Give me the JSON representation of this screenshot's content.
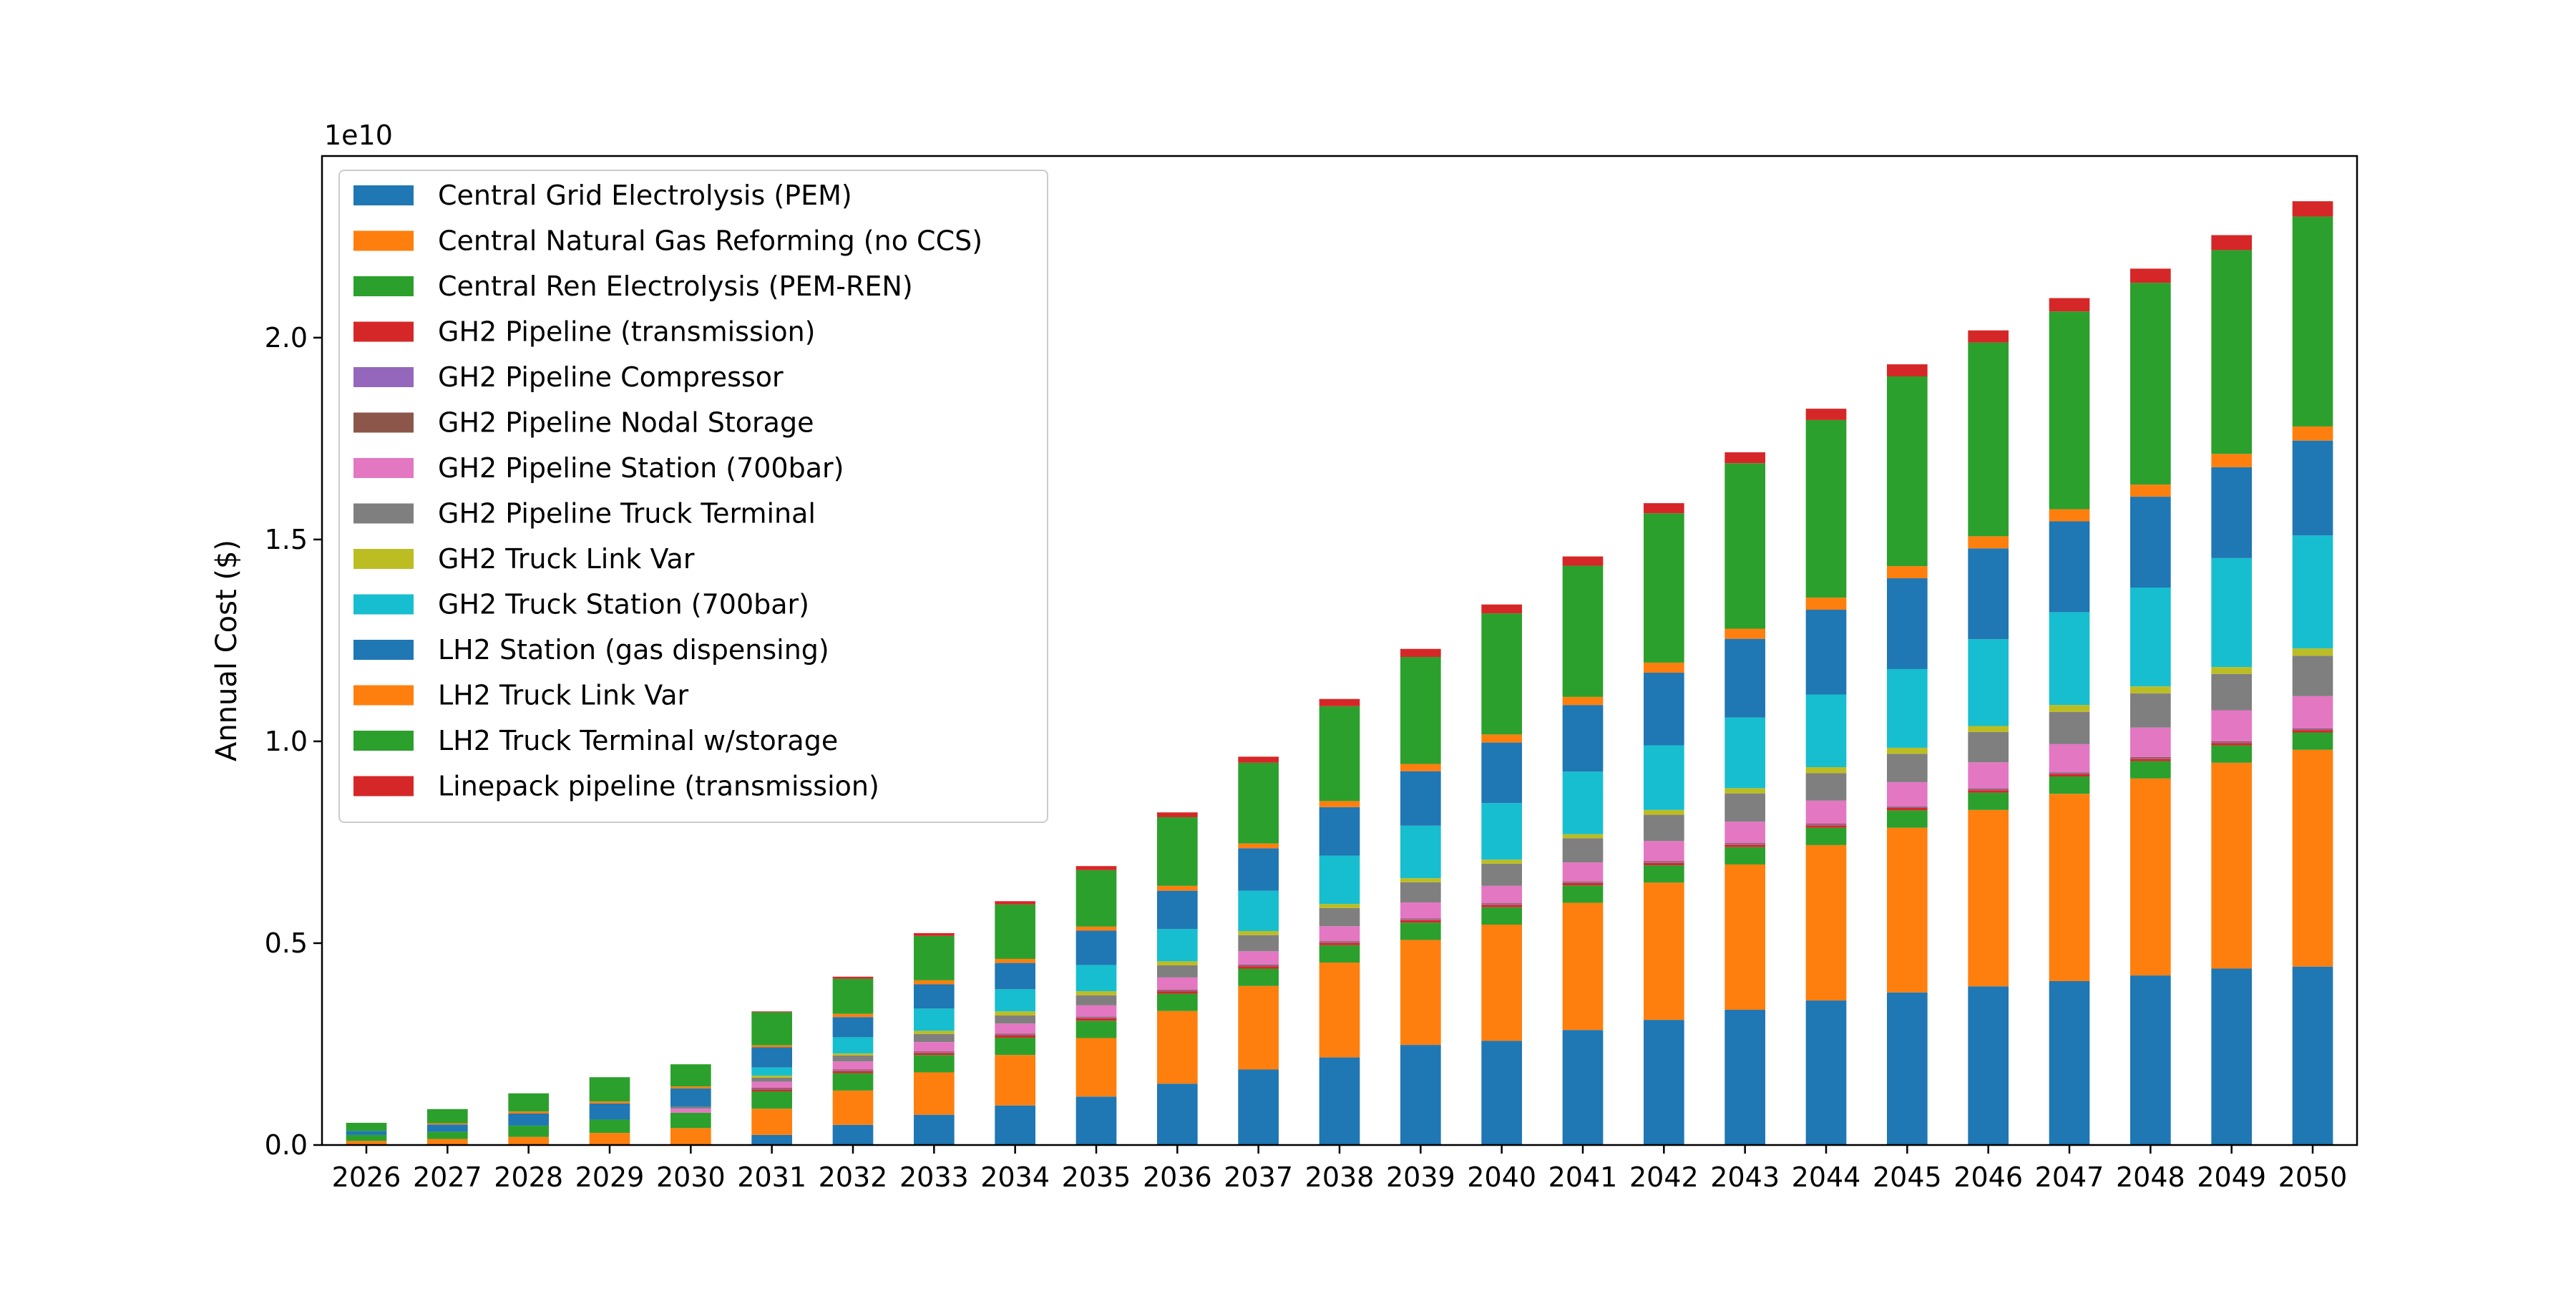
{
  "chart_data": {
    "type": "bar",
    "stacked": true,
    "title": "",
    "xlabel": "",
    "ylabel": "Annual Cost ($)",
    "y_offset_label": "1e10",
    "y_scale": 10000000000,
    "ylim": [
      0,
      24500000000
    ],
    "yticks": [
      0,
      5000000000,
      10000000000,
      15000000000,
      20000000000
    ],
    "ytick_labels": [
      "0.0",
      "0.5",
      "1.0",
      "1.5",
      "2.0"
    ],
    "grid": false,
    "legend_position": "upper-left",
    "categories": [
      "2026",
      "2027",
      "2028",
      "2029",
      "2030",
      "2031",
      "2032",
      "2033",
      "2034",
      "2035",
      "2036",
      "2037",
      "2038",
      "2039",
      "2040",
      "2041",
      "2042",
      "2043",
      "2044",
      "2045",
      "2046",
      "2047",
      "2048",
      "2049",
      "2050"
    ],
    "series": [
      {
        "name": "Central Grid Electrolysis (PEM)",
        "color": "#1f77b4",
        "values": [
          0,
          0,
          0,
          0,
          0,
          250000000,
          500000000,
          750000000,
          980000000,
          1200000000,
          1520000000,
          1870000000,
          2170000000,
          2480000000,
          2580000000,
          2850000000,
          3100000000,
          3350000000,
          3580000000,
          3780000000,
          3930000000,
          4060000000,
          4200000000,
          4370000000,
          4420000000
        ]
      },
      {
        "name": "Central Natural Gas Reforming (no CCS)",
        "color": "#ff7f0e",
        "values": [
          100000000,
          150000000,
          200000000,
          300000000,
          420000000,
          650000000,
          850000000,
          1050000000,
          1250000000,
          1450000000,
          1800000000,
          2070000000,
          2350000000,
          2600000000,
          2880000000,
          3150000000,
          3400000000,
          3600000000,
          3850000000,
          4080000000,
          4370000000,
          4640000000,
          4880000000,
          5100000000,
          5370000000
        ]
      },
      {
        "name": "Central Ren Electrolysis (PEM-REN)",
        "color": "#2ca02c",
        "values": [
          150000000,
          180000000,
          280000000,
          330000000,
          380000000,
          430000000,
          430000000,
          430000000,
          430000000,
          430000000,
          430000000,
          430000000,
          430000000,
          430000000,
          430000000,
          430000000,
          430000000,
          430000000,
          430000000,
          430000000,
          430000000,
          430000000,
          430000000,
          430000000,
          430000000
        ]
      },
      {
        "name": "GH2 Pipeline (transmission)",
        "color": "#d62728",
        "values": [
          0,
          0,
          0,
          0,
          0,
          50000000,
          50000000,
          50000000,
          60000000,
          60000000,
          60000000,
          60000000,
          60000000,
          60000000,
          60000000,
          60000000,
          60000000,
          60000000,
          60000000,
          60000000,
          60000000,
          60000000,
          60000000,
          60000000,
          60000000
        ]
      },
      {
        "name": "GH2 Pipeline Compressor",
        "color": "#9467bd",
        "values": [
          0,
          0,
          0,
          0,
          0,
          20000000,
          20000000,
          20000000,
          20000000,
          20000000,
          20000000,
          20000000,
          20000000,
          20000000,
          20000000,
          20000000,
          20000000,
          20000000,
          20000000,
          20000000,
          20000000,
          20000000,
          20000000,
          20000000,
          20000000
        ]
      },
      {
        "name": "GH2 Pipeline Nodal Storage",
        "color": "#8c564b",
        "values": [
          0,
          0,
          0,
          0,
          0,
          20000000,
          20000000,
          20000000,
          20000000,
          20000000,
          20000000,
          20000000,
          20000000,
          20000000,
          20000000,
          20000000,
          20000000,
          20000000,
          20000000,
          20000000,
          20000000,
          20000000,
          20000000,
          20000000,
          20000000
        ]
      },
      {
        "name": "GH2 Pipeline Station (700bar)",
        "color": "#e377c2",
        "values": [
          0,
          0,
          0,
          0,
          100000000,
          150000000,
          200000000,
          230000000,
          250000000,
          280000000,
          300000000,
          330000000,
          370000000,
          400000000,
          430000000,
          470000000,
          500000000,
          530000000,
          570000000,
          600000000,
          650000000,
          700000000,
          730000000,
          770000000,
          800000000
        ]
      },
      {
        "name": "GH2 Pipeline Truck Terminal",
        "color": "#7f7f7f",
        "values": [
          0,
          0,
          0,
          0,
          50000000,
          100000000,
          150000000,
          200000000,
          200000000,
          250000000,
          300000000,
          400000000,
          450000000,
          500000000,
          550000000,
          600000000,
          650000000,
          700000000,
          680000000,
          700000000,
          750000000,
          800000000,
          850000000,
          900000000,
          1000000000
        ]
      },
      {
        "name": "GH2 Truck Link Var",
        "color": "#bcbd22",
        "values": [
          0,
          0,
          0,
          0,
          0,
          50000000,
          50000000,
          80000000,
          100000000,
          100000000,
          100000000,
          100000000,
          100000000,
          100000000,
          100000000,
          100000000,
          120000000,
          130000000,
          150000000,
          150000000,
          150000000,
          170000000,
          170000000,
          170000000,
          180000000
        ]
      },
      {
        "name": "GH2 Truck Station (700bar)",
        "color": "#17becf",
        "values": [
          0,
          0,
          0,
          0,
          0,
          200000000,
          400000000,
          550000000,
          550000000,
          650000000,
          800000000,
          1000000000,
          1200000000,
          1300000000,
          1400000000,
          1550000000,
          1600000000,
          1750000000,
          1800000000,
          1950000000,
          2150000000,
          2300000000,
          2450000000,
          2700000000,
          2800000000
        ]
      },
      {
        "name": "LH2 Station (gas dispensing)",
        "color": "#1f77b4",
        "values": [
          100000000,
          180000000,
          300000000,
          400000000,
          450000000,
          500000000,
          500000000,
          600000000,
          650000000,
          850000000,
          950000000,
          1050000000,
          1200000000,
          1350000000,
          1500000000,
          1650000000,
          1800000000,
          1950000000,
          2100000000,
          2250000000,
          2250000000,
          2250000000,
          2250000000,
          2250000000,
          2350000000
        ]
      },
      {
        "name": "LH2 Truck Link Var",
        "color": "#ff7f0e",
        "values": [
          0,
          30000000,
          50000000,
          50000000,
          50000000,
          50000000,
          80000000,
          100000000,
          100000000,
          100000000,
          120000000,
          120000000,
          150000000,
          180000000,
          200000000,
          200000000,
          250000000,
          250000000,
          300000000,
          300000000,
          300000000,
          300000000,
          300000000,
          330000000,
          350000000
        ]
      },
      {
        "name": "LH2 Truck Terminal w/storage",
        "color": "#2ca02c",
        "values": [
          200000000,
          350000000,
          450000000,
          600000000,
          550000000,
          820000000,
          870000000,
          1100000000,
          1350000000,
          1400000000,
          1700000000,
          2000000000,
          2350000000,
          2650000000,
          3000000000,
          3250000000,
          3700000000,
          4100000000,
          4400000000,
          4700000000,
          4800000000,
          4900000000,
          5000000000,
          5050000000,
          5200000000
        ]
      },
      {
        "name": "Linepack pipeline (transmission)",
        "color": "#d62728",
        "values": [
          0,
          0,
          0,
          0,
          0,
          20000000,
          50000000,
          70000000,
          80000000,
          100000000,
          120000000,
          150000000,
          180000000,
          200000000,
          220000000,
          230000000,
          250000000,
          270000000,
          280000000,
          300000000,
          300000000,
          330000000,
          350000000,
          370000000,
          380000000
        ]
      }
    ]
  }
}
